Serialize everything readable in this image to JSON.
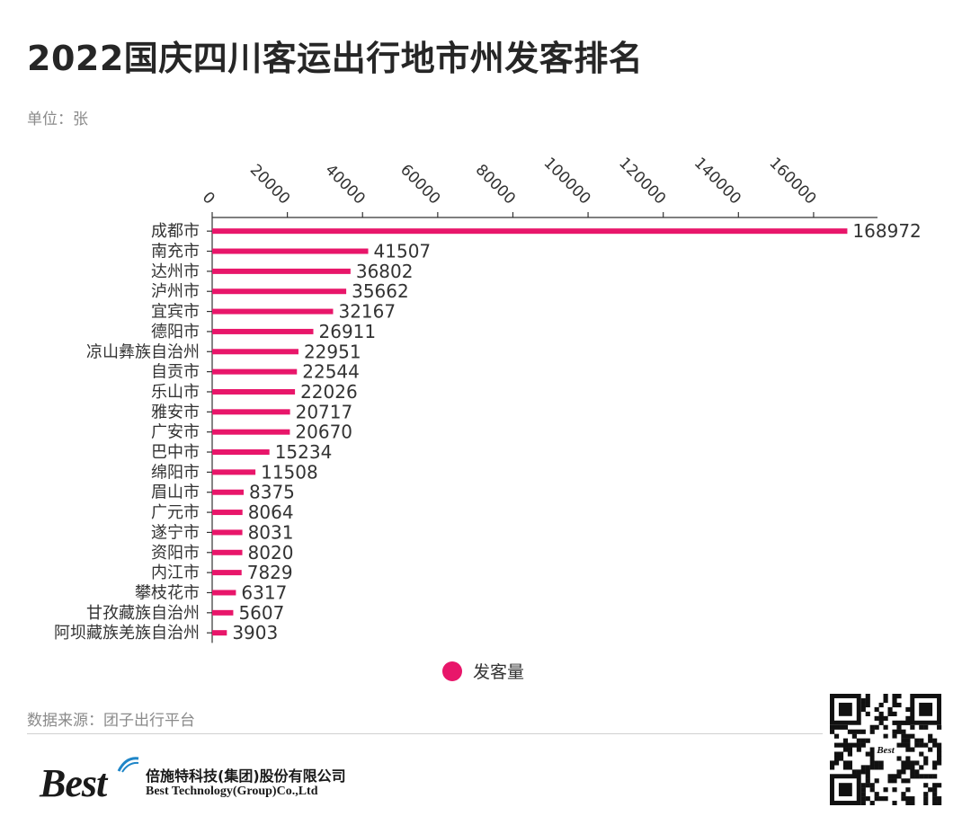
{
  "title": "2022国庆四川客运出行地市州发客排名",
  "unit": "单位：张",
  "legend_label": "发客量",
  "source": "数据来源：团子出行平台",
  "company": {
    "logo": "Best",
    "name_cn": "倍施特科技(集团)股份有限公司",
    "name_en": "Best Technology(Group)Co.,Ltd"
  },
  "qr_label": "Best",
  "colors": {
    "bar": "#e8166a",
    "axis": "#333333",
    "text": "#333333"
  },
  "chart_data": {
    "type": "bar",
    "orientation": "horizontal",
    "categories": [
      "成都市",
      "南充市",
      "达州市",
      "泸州市",
      "宜宾市",
      "德阳市",
      "凉山彝族自治州",
      "自贡市",
      "乐山市",
      "雅安市",
      "广安市",
      "巴中市",
      "绵阳市",
      "眉山市",
      "广元市",
      "遂宁市",
      "资阳市",
      "内江市",
      "攀枝花市",
      "甘孜藏族自治州",
      "阿坝藏族羌族自治州"
    ],
    "series": [
      {
        "name": "发客量",
        "values": [
          168972,
          41507,
          36802,
          35662,
          32167,
          26911,
          22951,
          22544,
          22026,
          20717,
          20670,
          15234,
          11508,
          8375,
          8064,
          8031,
          8020,
          7829,
          6317,
          5607,
          3903
        ]
      }
    ],
    "xticks": [
      0,
      20000,
      40000,
      60000,
      80000,
      100000,
      120000,
      140000,
      160000
    ],
    "xlim": [
      0,
      177000
    ],
    "axis_position": "top",
    "data_labels": true,
    "legend": "bottom-center"
  }
}
